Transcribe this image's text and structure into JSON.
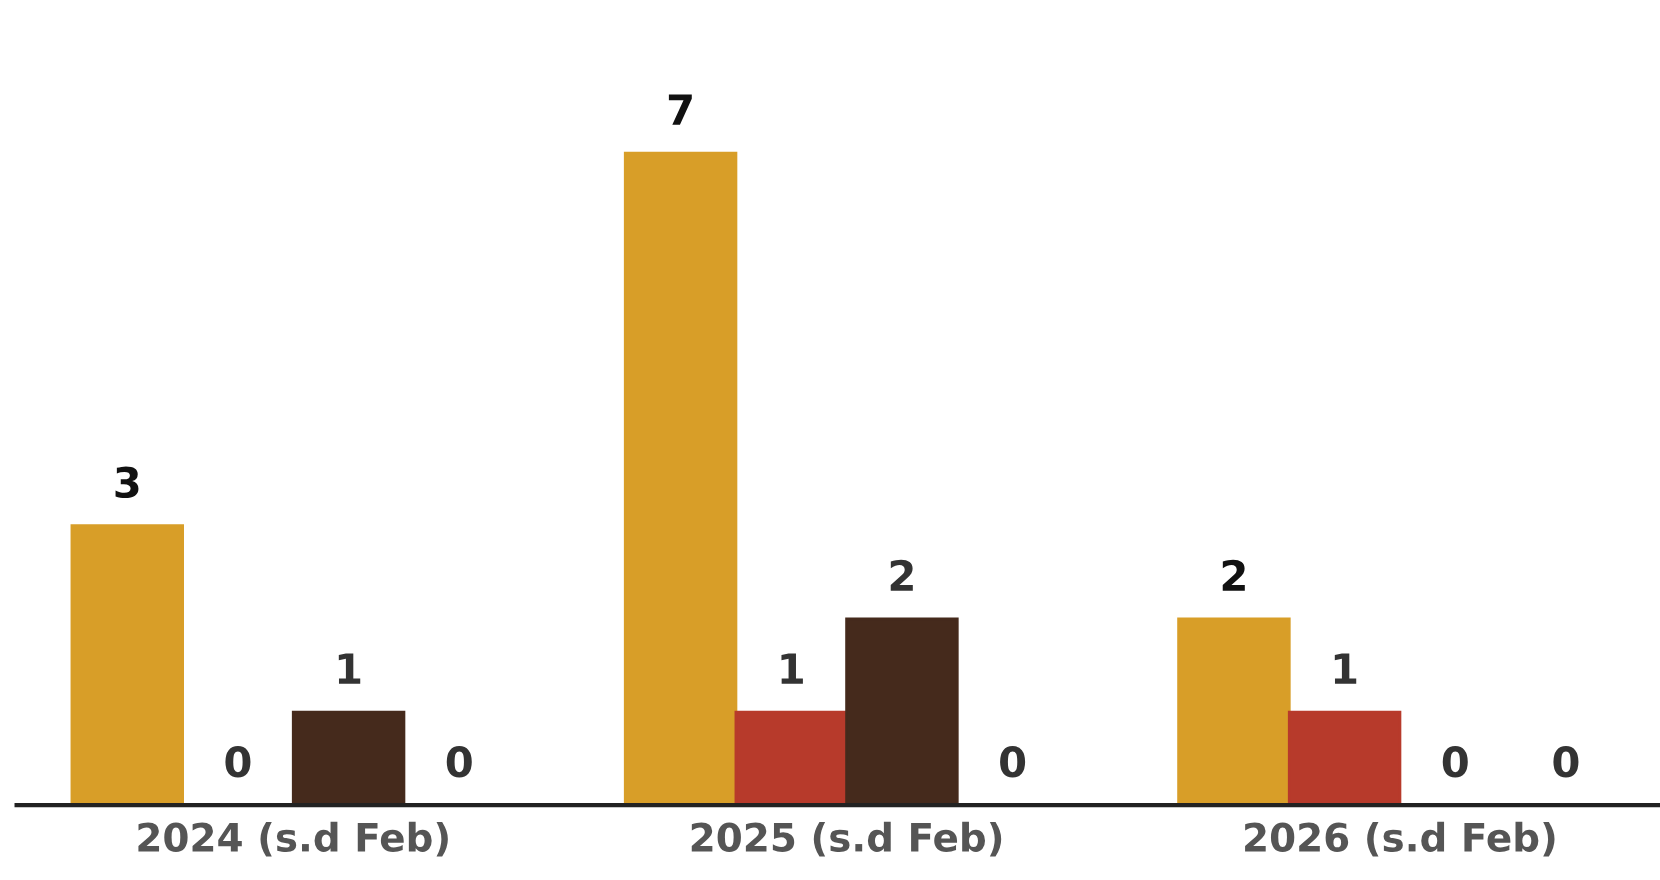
{
  "chart_data": {
    "type": "bar",
    "categories": [
      "2024 (s.d Feb)",
      "2025 (s.d Feb)",
      "2026 (s.d Feb)"
    ],
    "series": [
      {
        "color": "#d89e28",
        "values": [
          3,
          7,
          2
        ]
      },
      {
        "color": "#b73a2b",
        "values": [
          0,
          1,
          1
        ]
      },
      {
        "color": "#452a1c",
        "values": [
          1,
          2,
          0
        ]
      },
      {
        "color": "#8c8c8c",
        "values": [
          0,
          0,
          0
        ]
      }
    ],
    "data_labels": true,
    "grid": false,
    "legend": false
  }
}
